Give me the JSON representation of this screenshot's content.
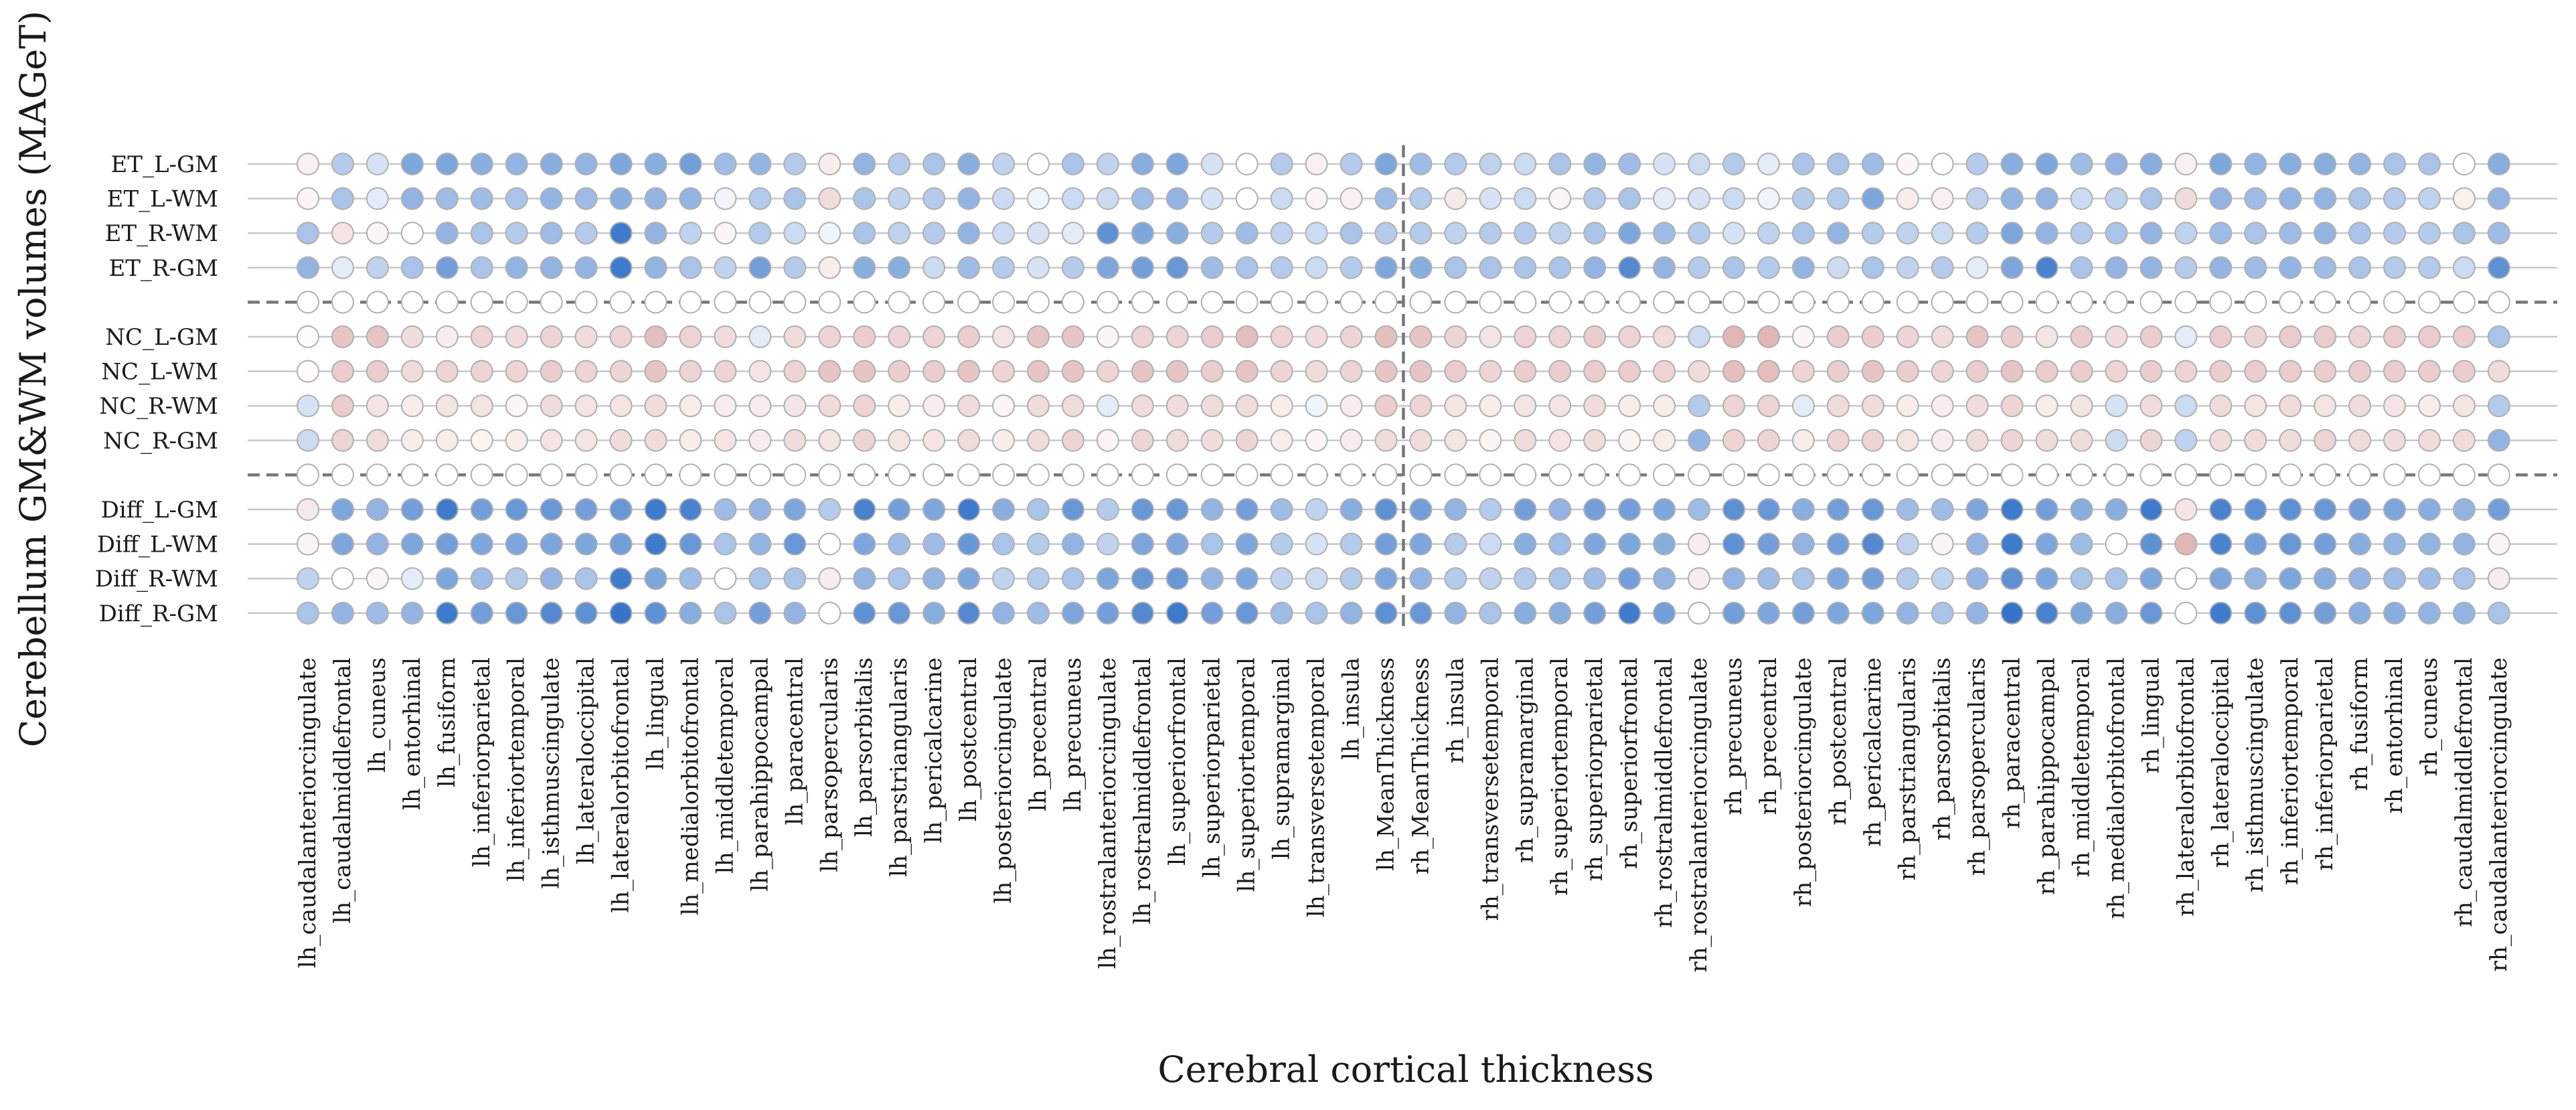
{
  "chart_data": {
    "type": "heatmap",
    "xlabel": "Cerebral cortical thickness",
    "ylabel": "Cerebellum GM&WM volumes (MAGeT)",
    "grid": true,
    "rows": [
      "ET_L-GM",
      "ET_L-WM",
      "ET_R-WM",
      "ET_R-GM",
      "",
      "NC_L-GM",
      "NC_L-WM",
      "NC_R-WM",
      "NC_R-GM",
      "",
      "Diff_L-GM",
      "Diff_L-WM",
      "Diff_R-WM",
      "Diff_R-GM"
    ],
    "columns": [
      "lh_caudalanteriorcingulate",
      "lh_caudalmiddlefrontal",
      "lh_cuneus",
      "lh_entorhinal",
      "lh_fusiform",
      "lh_inferiorparietal",
      "lh_inferiortemporal",
      "lh_isthmuscingulate",
      "lh_lateraloccipital",
      "lh_lateralorbitofrontal",
      "lh_lingual",
      "lh_medialorbitofrontal",
      "lh_middletemporal",
      "lh_parahippocampal",
      "lh_paracentral",
      "lh_parsopercularis",
      "lh_parsorbitalis",
      "lh_parstriangularis",
      "lh_pericalcarine",
      "lh_postcentral",
      "lh_posteriorcingulate",
      "lh_precentral",
      "lh_precuneus",
      "lh_rostralanteriorcingulate",
      "lh_rostralmiddlefrontal",
      "lh_superiorfrontal",
      "lh_superiorparietal",
      "lh_superiortemporal",
      "lh_supramarginal",
      "lh_transversetemporal",
      "lh_insula",
      "lh_MeanThickness",
      "rh_MeanThickness",
      "rh_insula",
      "rh_transversetemporal",
      "rh_supramarginal",
      "rh_superiortemporal",
      "rh_superiorparietal",
      "rh_superiorfrontal",
      "rh_rostralmiddlefrontal",
      "rh_rostralanteriorcingulate",
      "rh_precuneus",
      "rh_precentral",
      "rh_posteriorcingulate",
      "rh_postcentral",
      "rh_pericalcarine",
      "rh_parstriangularis",
      "rh_parsorbitalis",
      "rh_parsopercularis",
      "rh_paracentral",
      "rh_parahippocampal",
      "rh_middletemporal",
      "rh_medialorbitofrontal",
      "rh_lingual",
      "rh_lateralorbitofrontal",
      "rh_lateraloccipital",
      "rh_isthmuscingulate",
      "rh_inferiortemporal",
      "rh_inferiorparietal",
      "rh_fusiform",
      "rh_entorhinal",
      "rh_cuneus",
      "rh_caudalmiddlefrontal",
      "rh_caudalanteriorcingulate"
    ],
    "values_note": "",
    "values": [
      [
        0.08,
        -0.3,
        -0.15,
        -0.55,
        -0.55,
        -0.5,
        -0.45,
        -0.5,
        -0.45,
        -0.55,
        -0.5,
        -0.6,
        -0.4,
        -0.45,
        -0.3,
        0.1,
        -0.45,
        -0.3,
        -0.35,
        -0.5,
        -0.25,
        0.0,
        -0.35,
        -0.25,
        -0.5,
        -0.55,
        -0.15,
        0.0,
        -0.3,
        0.08,
        -0.3,
        -0.55,
        -0.4,
        -0.3,
        -0.25,
        -0.2,
        -0.35,
        -0.45,
        -0.4,
        -0.15,
        -0.2,
        -0.3,
        -0.1,
        -0.35,
        -0.35,
        -0.4,
        0.05,
        0.0,
        -0.3,
        -0.5,
        -0.55,
        -0.4,
        -0.45,
        -0.5,
        0.08,
        -0.55,
        -0.45,
        -0.5,
        -0.5,
        -0.45,
        -0.35,
        -0.35,
        0.0,
        -0.5
      ],
      [
        0.05,
        -0.35,
        -0.1,
        -0.45,
        -0.4,
        -0.4,
        -0.35,
        -0.45,
        -0.4,
        -0.5,
        -0.45,
        -0.45,
        -0.05,
        -0.3,
        -0.35,
        0.2,
        -0.35,
        -0.25,
        -0.3,
        -0.45,
        -0.2,
        -0.05,
        -0.2,
        -0.2,
        -0.4,
        -0.45,
        -0.15,
        0.0,
        -0.2,
        0.05,
        0.08,
        -0.4,
        -0.3,
        0.12,
        -0.15,
        -0.2,
        0.05,
        -0.3,
        -0.35,
        -0.1,
        -0.15,
        -0.2,
        -0.05,
        -0.3,
        -0.3,
        -0.55,
        0.1,
        0.08,
        -0.25,
        -0.45,
        -0.45,
        -0.2,
        -0.25,
        -0.35,
        0.2,
        -0.45,
        -0.4,
        -0.45,
        -0.45,
        -0.35,
        -0.3,
        -0.25,
        0.08,
        -0.45
      ],
      [
        -0.35,
        0.15,
        0.05,
        0.0,
        -0.45,
        -0.35,
        -0.3,
        -0.4,
        -0.3,
        -0.85,
        -0.45,
        -0.25,
        0.05,
        -0.3,
        -0.2,
        -0.05,
        -0.35,
        -0.25,
        -0.3,
        -0.45,
        -0.2,
        -0.15,
        -0.1,
        -0.7,
        -0.55,
        -0.5,
        -0.3,
        -0.4,
        -0.25,
        -0.2,
        -0.35,
        -0.3,
        -0.3,
        -0.25,
        -0.3,
        -0.3,
        -0.25,
        -0.35,
        -0.55,
        -0.4,
        -0.3,
        -0.15,
        -0.25,
        -0.35,
        -0.45,
        -0.3,
        -0.25,
        -0.2,
        -0.3,
        -0.55,
        -0.45,
        -0.3,
        -0.35,
        -0.45,
        -0.25,
        -0.4,
        -0.35,
        -0.4,
        -0.45,
        -0.35,
        -0.3,
        -0.3,
        -0.35,
        -0.4
      ],
      [
        -0.45,
        -0.1,
        -0.25,
        -0.35,
        -0.6,
        -0.35,
        -0.45,
        -0.45,
        -0.45,
        -0.85,
        -0.45,
        -0.35,
        -0.25,
        -0.6,
        -0.3,
        0.1,
        -0.5,
        -0.5,
        -0.2,
        -0.4,
        -0.3,
        -0.15,
        -0.3,
        -0.55,
        -0.6,
        -0.65,
        -0.4,
        -0.35,
        -0.3,
        -0.2,
        -0.3,
        -0.55,
        -0.5,
        -0.35,
        -0.35,
        -0.35,
        -0.35,
        -0.45,
        -0.75,
        -0.45,
        -0.3,
        -0.35,
        -0.3,
        -0.45,
        -0.2,
        -0.35,
        -0.25,
        -0.3,
        -0.1,
        -0.55,
        -0.8,
        -0.35,
        -0.45,
        -0.45,
        -0.3,
        -0.45,
        -0.4,
        -0.45,
        -0.4,
        -0.35,
        -0.3,
        -0.3,
        -0.2,
        -0.7
      ],
      [
        null,
        null,
        null,
        null,
        null,
        null,
        null,
        null,
        null,
        null,
        null,
        null,
        null,
        null,
        null,
        null,
        null,
        null,
        null,
        null,
        null,
        null,
        null,
        null,
        null,
        null,
        null,
        null,
        null,
        null,
        null,
        null,
        null,
        null,
        null,
        null,
        null,
        null,
        null,
        null,
        null,
        null,
        null,
        null,
        null,
        null,
        null,
        null,
        null,
        null,
        null,
        null,
        null,
        null,
        null,
        null,
        null,
        null,
        null,
        null,
        null,
        null,
        null,
        null
      ],
      [
        0.02,
        0.35,
        0.35,
        0.2,
        0.1,
        0.25,
        0.2,
        0.25,
        0.2,
        0.25,
        0.4,
        0.25,
        0.2,
        -0.1,
        0.2,
        0.25,
        0.3,
        0.25,
        0.25,
        0.3,
        0.15,
        0.35,
        0.35,
        0.05,
        0.25,
        0.25,
        0.3,
        0.4,
        0.25,
        0.2,
        0.25,
        0.4,
        0.35,
        0.25,
        0.15,
        0.25,
        0.25,
        0.3,
        0.25,
        0.2,
        -0.2,
        0.45,
        0.45,
        0.05,
        0.3,
        0.3,
        0.25,
        0.2,
        0.35,
        0.3,
        0.15,
        0.3,
        0.2,
        0.3,
        -0.1,
        0.3,
        0.25,
        0.3,
        0.3,
        0.25,
        0.3,
        0.3,
        0.3,
        -0.35
      ],
      [
        0.02,
        0.3,
        0.3,
        0.2,
        0.25,
        0.25,
        0.25,
        0.3,
        0.25,
        0.25,
        0.35,
        0.25,
        0.25,
        0.15,
        0.25,
        0.35,
        0.35,
        0.3,
        0.3,
        0.35,
        0.25,
        0.35,
        0.35,
        0.25,
        0.35,
        0.35,
        0.3,
        0.35,
        0.25,
        0.2,
        0.25,
        0.35,
        0.35,
        0.3,
        0.25,
        0.3,
        0.3,
        0.3,
        0.3,
        0.25,
        0.2,
        0.4,
        0.4,
        0.25,
        0.3,
        0.35,
        0.3,
        0.25,
        0.3,
        0.35,
        0.3,
        0.3,
        0.25,
        0.3,
        0.25,
        0.3,
        0.3,
        0.3,
        0.3,
        0.3,
        0.3,
        0.3,
        0.3,
        0.2
      ],
      [
        -0.15,
        0.3,
        0.15,
        0.1,
        0.15,
        0.15,
        0.05,
        0.2,
        0.15,
        0.15,
        0.2,
        0.1,
        0.1,
        0.1,
        0.15,
        0.2,
        0.25,
        0.1,
        0.1,
        0.2,
        0.05,
        0.2,
        0.2,
        -0.1,
        0.2,
        0.2,
        0.2,
        0.2,
        0.1,
        -0.05,
        0.1,
        0.3,
        0.25,
        0.15,
        0.1,
        0.15,
        0.15,
        0.2,
        0.1,
        0.1,
        -0.3,
        0.25,
        0.25,
        -0.1,
        0.2,
        0.2,
        0.1,
        0.1,
        0.2,
        0.25,
        0.1,
        0.15,
        -0.15,
        0.2,
        -0.2,
        0.2,
        0.15,
        0.2,
        0.15,
        0.2,
        0.15,
        0.1,
        0.15,
        -0.3
      ],
      [
        -0.2,
        0.25,
        0.2,
        0.1,
        0.1,
        0.05,
        0.1,
        0.15,
        0.15,
        0.2,
        0.2,
        0.1,
        0.15,
        0.1,
        0.2,
        0.15,
        0.25,
        0.15,
        0.15,
        0.2,
        0.1,
        0.2,
        0.25,
        0.05,
        0.25,
        0.2,
        0.2,
        0.25,
        0.1,
        0.05,
        0.1,
        0.2,
        0.2,
        0.15,
        0.05,
        0.2,
        0.15,
        0.2,
        0.05,
        0.1,
        -0.45,
        0.25,
        0.25,
        0.1,
        0.25,
        0.25,
        0.15,
        0.1,
        0.2,
        0.25,
        0.2,
        0.2,
        -0.2,
        0.25,
        -0.25,
        0.2,
        0.2,
        0.2,
        0.25,
        0.2,
        0.2,
        0.2,
        0.2,
        -0.45
      ],
      [
        null,
        null,
        null,
        null,
        null,
        null,
        null,
        null,
        null,
        null,
        null,
        null,
        null,
        null,
        null,
        null,
        null,
        null,
        null,
        null,
        null,
        null,
        null,
        null,
        null,
        null,
        null,
        null,
        null,
        null,
        null,
        null,
        null,
        null,
        null,
        null,
        null,
        null,
        null,
        null,
        null,
        null,
        null,
        null,
        null,
        null,
        null,
        null,
        null,
        null,
        null,
        null,
        null,
        null,
        null,
        null,
        null,
        null,
        null,
        null,
        null,
        null,
        null,
        null
      ],
      [
        0.12,
        -0.55,
        -0.45,
        -0.6,
        -0.85,
        -0.6,
        -0.65,
        -0.65,
        -0.6,
        -0.65,
        -0.85,
        -0.8,
        -0.4,
        -0.45,
        -0.55,
        -0.3,
        -0.8,
        -0.6,
        -0.55,
        -0.85,
        -0.5,
        -0.35,
        -0.65,
        -0.3,
        -0.65,
        -0.65,
        -0.45,
        -0.6,
        -0.4,
        -0.25,
        -0.5,
        -0.7,
        -0.6,
        -0.45,
        -0.3,
        -0.6,
        -0.45,
        -0.6,
        -0.6,
        -0.55,
        -0.4,
        -0.7,
        -0.65,
        -0.5,
        -0.6,
        -0.65,
        -0.4,
        -0.4,
        -0.55,
        -0.85,
        -0.6,
        -0.5,
        -0.5,
        -0.85,
        0.15,
        -0.8,
        -0.7,
        -0.7,
        -0.65,
        -0.6,
        -0.55,
        -0.5,
        -0.45,
        -0.6
      ],
      [
        0.05,
        -0.55,
        -0.45,
        -0.55,
        -0.6,
        -0.55,
        -0.55,
        -0.55,
        -0.55,
        -0.6,
        -0.85,
        -0.65,
        -0.35,
        -0.45,
        -0.65,
        0.0,
        -0.55,
        -0.4,
        -0.4,
        -0.65,
        -0.35,
        -0.3,
        -0.45,
        -0.25,
        -0.55,
        -0.55,
        -0.35,
        -0.55,
        -0.3,
        -0.15,
        -0.3,
        -0.6,
        -0.55,
        -0.3,
        -0.2,
        -0.5,
        -0.4,
        -0.55,
        -0.55,
        -0.5,
        0.1,
        -0.7,
        -0.6,
        -0.45,
        -0.6,
        -0.75,
        -0.25,
        0.05,
        -0.45,
        -0.85,
        -0.55,
        -0.4,
        0.0,
        -0.7,
        0.45,
        -0.8,
        -0.6,
        -0.65,
        -0.6,
        -0.5,
        -0.45,
        -0.45,
        -0.45,
        0.05
      ],
      [
        -0.25,
        0.0,
        0.05,
        -0.1,
        -0.55,
        -0.4,
        -0.3,
        -0.45,
        -0.35,
        -0.85,
        -0.55,
        -0.4,
        0.0,
        -0.35,
        -0.35,
        0.1,
        -0.45,
        -0.35,
        -0.45,
        -0.55,
        -0.25,
        -0.3,
        -0.35,
        -0.55,
        -0.65,
        -0.65,
        -0.45,
        -0.55,
        -0.25,
        -0.2,
        -0.3,
        -0.55,
        -0.45,
        -0.3,
        -0.25,
        -0.3,
        -0.35,
        -0.4,
        -0.6,
        -0.45,
        0.1,
        -0.45,
        -0.4,
        -0.35,
        -0.55,
        -0.6,
        -0.3,
        -0.25,
        -0.45,
        -0.7,
        -0.55,
        -0.35,
        -0.35,
        -0.55,
        0.0,
        -0.55,
        -0.45,
        -0.55,
        -0.5,
        -0.45,
        -0.4,
        -0.4,
        -0.35,
        0.1
      ],
      [
        -0.35,
        -0.45,
        -0.4,
        -0.45,
        -0.85,
        -0.6,
        -0.65,
        -0.75,
        -0.7,
        -0.9,
        -0.7,
        -0.5,
        -0.35,
        -0.6,
        -0.45,
        0.0,
        -0.7,
        -0.65,
        -0.5,
        -0.75,
        -0.45,
        -0.4,
        -0.55,
        -0.6,
        -0.75,
        -0.85,
        -0.6,
        -0.65,
        -0.4,
        -0.35,
        -0.45,
        -0.7,
        -0.65,
        -0.45,
        -0.35,
        -0.5,
        -0.5,
        -0.6,
        -0.85,
        -0.6,
        0.0,
        -0.6,
        -0.55,
        -0.6,
        -0.55,
        -0.55,
        -0.45,
        -0.35,
        -0.45,
        -0.9,
        -0.8,
        -0.55,
        -0.5,
        -0.65,
        0.0,
        -0.85,
        -0.7,
        -0.7,
        -0.6,
        -0.5,
        -0.5,
        -0.45,
        -0.45,
        -0.35
      ]
    ],
    "colormap": {
      "negative": "#2166c4",
      "zero": "#ffffff",
      "positive": "#c46a6a"
    },
    "separator_color": "#777777",
    "gridline_color": "#c8c8c8",
    "marker_edge_color": "#b0b0b0"
  }
}
